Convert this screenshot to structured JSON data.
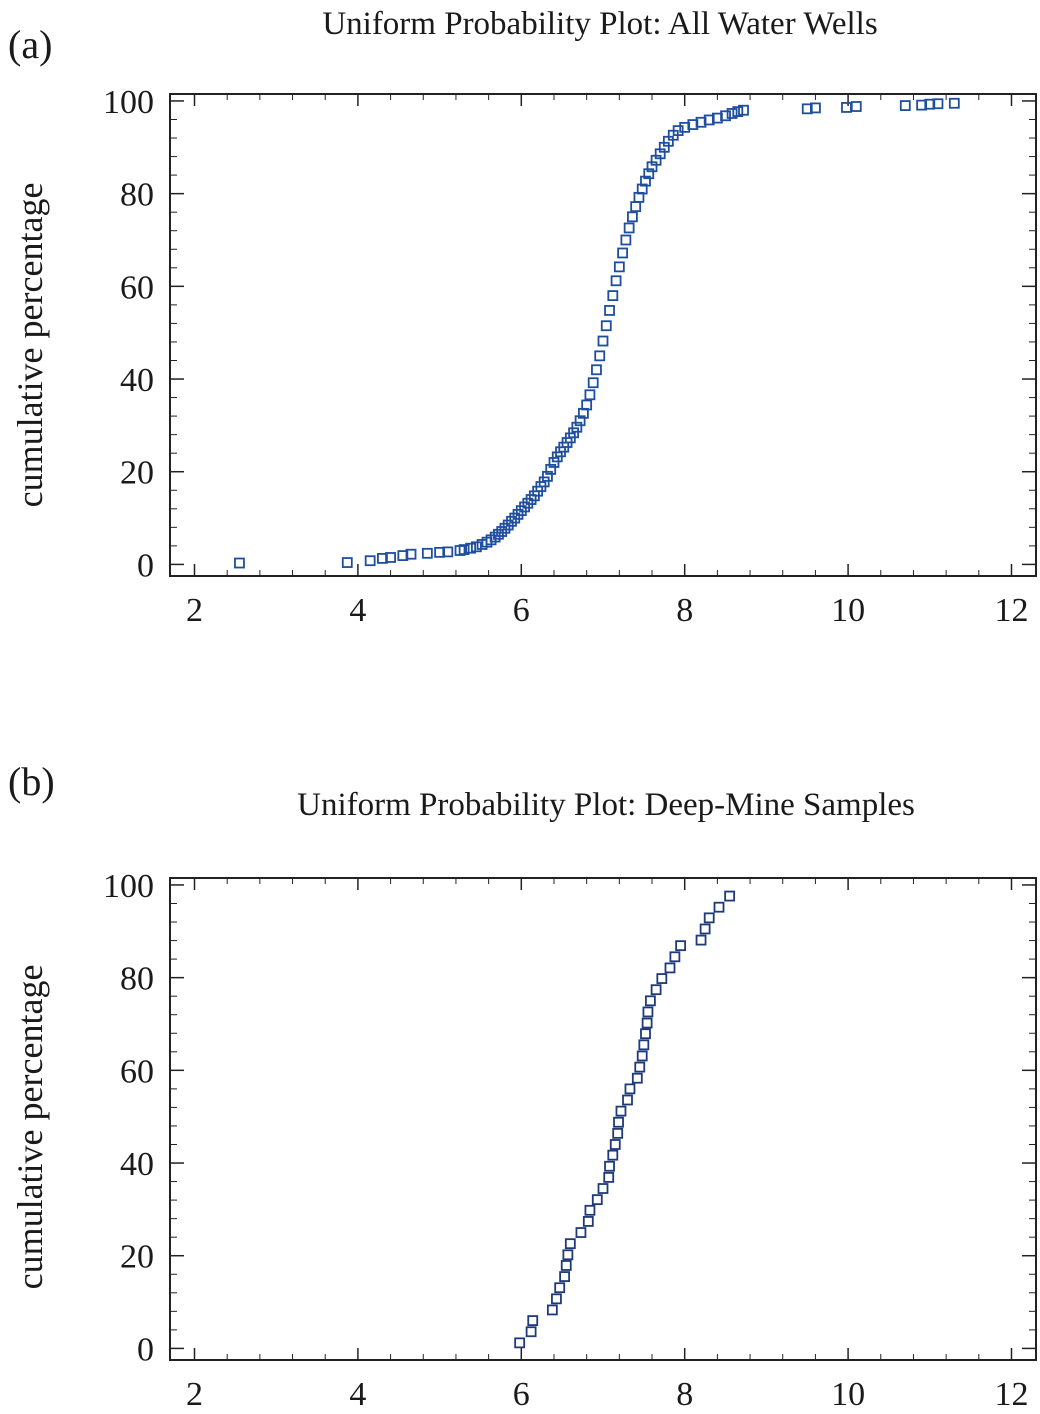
{
  "chart_data": [
    {
      "panel_label": "(a)",
      "title": "Uniform Probability Plot: All Water Wells",
      "type": "scatter",
      "xlabel": "",
      "ylabel": "cumulative percentage",
      "xlim": [
        1.7,
        12.3
      ],
      "ylim": [
        -2.5,
        101.5
      ],
      "xticks": [
        2,
        4,
        6,
        8,
        10,
        12
      ],
      "yticks": [
        0,
        20,
        40,
        60,
        80,
        100
      ],
      "grid": false,
      "marker_color": "#1f4e9e",
      "points": [
        [
          2.55,
          0.3
        ],
        [
          3.87,
          0.4
        ],
        [
          4.15,
          0.8
        ],
        [
          4.3,
          1.3
        ],
        [
          4.4,
          1.5
        ],
        [
          4.55,
          1.9
        ],
        [
          4.65,
          2.2
        ],
        [
          4.85,
          2.4
        ],
        [
          5.0,
          2.6
        ],
        [
          5.1,
          2.7
        ],
        [
          5.25,
          3.0
        ],
        [
          5.3,
          3.2
        ],
        [
          5.38,
          3.5
        ],
        [
          5.45,
          3.8
        ],
        [
          5.52,
          4.3
        ],
        [
          5.58,
          4.8
        ],
        [
          5.63,
          5.3
        ],
        [
          5.68,
          5.9
        ],
        [
          5.72,
          6.5
        ],
        [
          5.76,
          7.1
        ],
        [
          5.8,
          7.8
        ],
        [
          5.84,
          8.5
        ],
        [
          5.88,
          9.3
        ],
        [
          5.92,
          10.0
        ],
        [
          5.96,
          10.8
        ],
        [
          6.0,
          11.6
        ],
        [
          6.04,
          12.4
        ],
        [
          6.08,
          13.2
        ],
        [
          6.12,
          14.0
        ],
        [
          6.16,
          14.8
        ],
        [
          6.2,
          15.8
        ],
        [
          6.24,
          16.8
        ],
        [
          6.28,
          17.8
        ],
        [
          6.32,
          19.0
        ],
        [
          6.36,
          20.5
        ],
        [
          6.4,
          22.0
        ],
        [
          6.44,
          23.2
        ],
        [
          6.48,
          24.3
        ],
        [
          6.52,
          25.3
        ],
        [
          6.56,
          26.3
        ],
        [
          6.6,
          27.3
        ],
        [
          6.64,
          28.4
        ],
        [
          6.68,
          29.6
        ],
        [
          6.72,
          31.0
        ],
        [
          6.76,
          32.6
        ],
        [
          6.8,
          34.4
        ],
        [
          6.84,
          36.6
        ],
        [
          6.88,
          39.2
        ],
        [
          6.92,
          42.0
        ],
        [
          6.96,
          45.0
        ],
        [
          7.0,
          48.2
        ],
        [
          7.04,
          51.5
        ],
        [
          7.08,
          54.8
        ],
        [
          7.12,
          58.0
        ],
        [
          7.16,
          61.2
        ],
        [
          7.2,
          64.2
        ],
        [
          7.24,
          67.2
        ],
        [
          7.28,
          70.0
        ],
        [
          7.32,
          72.6
        ],
        [
          7.36,
          75.0
        ],
        [
          7.4,
          77.2
        ],
        [
          7.44,
          79.2
        ],
        [
          7.48,
          81.0
        ],
        [
          7.52,
          82.7
        ],
        [
          7.56,
          84.3
        ],
        [
          7.6,
          85.8
        ],
        [
          7.65,
          87.2
        ],
        [
          7.7,
          88.6
        ],
        [
          7.75,
          90.0
        ],
        [
          7.8,
          91.3
        ],
        [
          7.86,
          92.6
        ],
        [
          7.92,
          93.6
        ],
        [
          8.0,
          94.3
        ],
        [
          8.1,
          94.9
        ],
        [
          8.2,
          95.4
        ],
        [
          8.3,
          95.9
        ],
        [
          8.4,
          96.3
        ],
        [
          8.5,
          96.8
        ],
        [
          8.58,
          97.3
        ],
        [
          8.65,
          97.7
        ],
        [
          8.72,
          98.0
        ],
        [
          9.5,
          98.3
        ],
        [
          9.6,
          98.5
        ],
        [
          9.98,
          98.6
        ],
        [
          10.1,
          98.8
        ],
        [
          10.7,
          99.0
        ],
        [
          10.9,
          99.1
        ],
        [
          11.0,
          99.3
        ],
        [
          11.1,
          99.4
        ],
        [
          11.3,
          99.5
        ]
      ]
    },
    {
      "panel_label": "(b)",
      "title": "Uniform Probability Plot: Deep-Mine Samples",
      "type": "scatter",
      "xlabel": "",
      "ylabel": "cumulative percentage",
      "xlim": [
        1.7,
        12.3
      ],
      "ylim": [
        -2.5,
        101.5
      ],
      "xticks": [
        2,
        4,
        6,
        8,
        10,
        12
      ],
      "yticks": [
        0,
        20,
        40,
        60,
        80,
        100
      ],
      "grid": false,
      "marker_color": "#1f3a7a",
      "points": [
        [
          5.98,
          1.2
        ],
        [
          6.12,
          3.6
        ],
        [
          6.14,
          6.0
        ],
        [
          6.38,
          8.3
        ],
        [
          6.43,
          10.7
        ],
        [
          6.47,
          13.1
        ],
        [
          6.53,
          15.5
        ],
        [
          6.55,
          17.9
        ],
        [
          6.57,
          20.2
        ],
        [
          6.6,
          22.6
        ],
        [
          6.73,
          25.0
        ],
        [
          6.82,
          27.4
        ],
        [
          6.84,
          29.8
        ],
        [
          6.93,
          32.1
        ],
        [
          7.0,
          34.5
        ],
        [
          7.07,
          36.9
        ],
        [
          7.08,
          39.3
        ],
        [
          7.12,
          41.7
        ],
        [
          7.15,
          44.0
        ],
        [
          7.18,
          46.4
        ],
        [
          7.19,
          48.8
        ],
        [
          7.22,
          51.2
        ],
        [
          7.3,
          53.6
        ],
        [
          7.33,
          56.0
        ],
        [
          7.42,
          58.3
        ],
        [
          7.45,
          60.7
        ],
        [
          7.48,
          63.1
        ],
        [
          7.5,
          65.5
        ],
        [
          7.52,
          67.9
        ],
        [
          7.54,
          70.2
        ],
        [
          7.55,
          72.6
        ],
        [
          7.58,
          75.0
        ],
        [
          7.65,
          77.4
        ],
        [
          7.72,
          79.8
        ],
        [
          7.82,
          82.1
        ],
        [
          7.88,
          84.5
        ],
        [
          7.95,
          86.9
        ],
        [
          8.2,
          88.1
        ],
        [
          8.25,
          90.5
        ],
        [
          8.3,
          92.9
        ],
        [
          8.42,
          95.2
        ],
        [
          8.55,
          97.6
        ]
      ]
    }
  ]
}
